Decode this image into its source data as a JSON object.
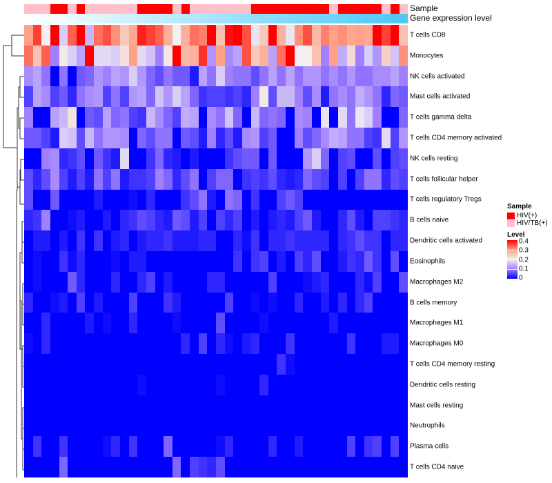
{
  "chart_data": {
    "type": "heatmap",
    "annotations": {
      "sample": {
        "label": "Sample",
        "values": [
          "HIV/TB(+)",
          "HIV/TB(+)",
          "HIV/TB(+)",
          "HIV(+)",
          "HIV(+)",
          "HIV/TB(+)",
          "HIV(+)",
          "HIV/TB(+)",
          "HIV/TB(+)",
          "HIV/TB(+)",
          "HIV/TB(+)",
          "HIV/TB(+)",
          "HIV/TB(+)",
          "HIV(+)",
          "HIV(+)",
          "HIV(+)",
          "HIV(+)",
          "HIV/TB(+)",
          "HIV(+)",
          "HIV/TB(+)",
          "HIV/TB(+)",
          "HIV/TB(+)",
          "HIV/TB(+)",
          "HIV/TB(+)",
          "HIV/TB(+)",
          "HIV/TB(+)",
          "HIV(+)",
          "HIV(+)",
          "HIV(+)",
          "HIV(+)",
          "HIV(+)",
          "HIV(+)",
          "HIV(+)",
          "HIV(+)",
          "HIV(+)",
          "HIV/TB(+)",
          "HIV(+)",
          "HIV(+)",
          "HIV(+)",
          "HIV(+)",
          "HIV(+)",
          "HIV/TB(+)",
          "HIV(+)",
          "HIV/TB(+)"
        ]
      },
      "expression": {
        "label": "Gene expression level",
        "trend": "increasing left to right",
        "color_low": "#ffffff",
        "color_high": "#4ec8f4"
      }
    },
    "rows": [
      "T cells CD8",
      "Monocytes",
      "NK cells activated",
      "Mast cells activated",
      "T cells gamma delta",
      "T cells CD4 memory activated",
      "NK cells resting",
      "T cells follicular helper",
      "T cells regulatory  Tregs",
      "B cells naive",
      "Dendritic cells activated",
      "Eosinophils",
      "Macrophages M2",
      "B cells memory",
      "Macrophages M1",
      "Macrophages M0",
      "T cells CD4 memory resting",
      "Dendritic cells resting",
      "Mast cells resting",
      "Neutrophils",
      "Plasma cells",
      "T cells CD4 naive"
    ],
    "values": [
      [
        0.3,
        0.36,
        0.2,
        0.4,
        0.17,
        0.34,
        0.4,
        0.15,
        0.33,
        0.35,
        0.31,
        0.25,
        0.29,
        0.38,
        0.36,
        0.34,
        0.28,
        0.2,
        0.28,
        0.33,
        0.32,
        0.4,
        0.26,
        0.39,
        0.4,
        0.35,
        0.19,
        0.25,
        0.4,
        0.28,
        0.19,
        0.31,
        0.35,
        0.27,
        0.32,
        0.3,
        0.31,
        0.29,
        0.3,
        0.29,
        0.4,
        0.36,
        0.4,
        0.26
      ],
      [
        0.33,
        0.26,
        0.34,
        0.1,
        0.21,
        0.17,
        0.13,
        0.4,
        0.18,
        0.18,
        0.17,
        0.22,
        0.3,
        0.18,
        0.16,
        0.1,
        0.21,
        0.4,
        0.27,
        0.28,
        0.37,
        0.12,
        0.3,
        0.11,
        0.13,
        0.35,
        0.25,
        0.28,
        0.13,
        0.33,
        0.4,
        0.2,
        0.2,
        0.26,
        0.1,
        0.3,
        0.14,
        0.23,
        0.1,
        0.17,
        0.12,
        0.24,
        0.16,
        0.31
      ],
      [
        0.11,
        0.13,
        0.09,
        0.0,
        0.09,
        0.0,
        0.07,
        0.08,
        0.12,
        0.1,
        0.13,
        0.12,
        0.17,
        0.12,
        0.08,
        0.06,
        0.09,
        0.07,
        0.07,
        0.02,
        0.13,
        0.09,
        0.17,
        0.1,
        0.09,
        0.09,
        0.06,
        0.09,
        0.13,
        0.09,
        0.13,
        0.09,
        0.12,
        0.12,
        0.09,
        0.11,
        0.09,
        0.12,
        0.09,
        0.09,
        0.11,
        0.11,
        0.13,
        0.1
      ],
      [
        0.05,
        0.13,
        0.11,
        0.05,
        0.07,
        0.03,
        0.09,
        0.11,
        0.12,
        0.05,
        0.09,
        0.05,
        0.12,
        0.13,
        0.08,
        0.16,
        0.12,
        0.17,
        0.13,
        0.08,
        0.04,
        0.05,
        0.05,
        0.04,
        0.05,
        0.03,
        0.1,
        0.21,
        0.06,
        0.15,
        0.15,
        0.1,
        0.06,
        0.11,
        0.02,
        0.09,
        0.11,
        0.09,
        0.14,
        0.12,
        0.09,
        0.03,
        0.08,
        0.07
      ],
      [
        0.1,
        0.0,
        0.0,
        0.13,
        0.15,
        0.22,
        0.0,
        0.07,
        0.06,
        0.13,
        0.08,
        0.09,
        0.05,
        0.04,
        0.15,
        0.11,
        0.08,
        0.05,
        0.14,
        0.13,
        0.0,
        0.11,
        0.09,
        0.16,
        0.08,
        0.0,
        0.15,
        0.08,
        0.09,
        0.08,
        0.0,
        0.11,
        0.1,
        0.0,
        0.19,
        0.0,
        0.18,
        0.09,
        0.19,
        0.17,
        0.1,
        0.0,
        0.0,
        0.08
      ],
      [
        0.07,
        0.07,
        0.05,
        0.02,
        0.17,
        0.16,
        0.06,
        0.15,
        0.09,
        0.12,
        0.12,
        0.11,
        0.0,
        0.08,
        0.06,
        0.09,
        0.09,
        0.0,
        0.07,
        0.06,
        0.02,
        0.1,
        0.03,
        0.06,
        0.02,
        0.11,
        0.12,
        0.05,
        0.07,
        0.0,
        0.0,
        0.1,
        0.06,
        0.08,
        0.11,
        0.14,
        0.13,
        0.09,
        0.09,
        0.05,
        0.04,
        0.18,
        0.05,
        0.12
      ],
      [
        0.0,
        0.0,
        0.1,
        0.11,
        0.03,
        0.04,
        0.06,
        0.0,
        0.07,
        0.04,
        0.02,
        0.18,
        0.0,
        0.0,
        0.04,
        0.08,
        0.03,
        0.02,
        0.0,
        0.02,
        0.0,
        0.0,
        0.0,
        0.04,
        0.06,
        0.07,
        0.07,
        0.0,
        0.07,
        0.0,
        0.0,
        0.0,
        0.12,
        0.17,
        0.08,
        0.0,
        0.05,
        0.06,
        0.0,
        0.0,
        0.06,
        0.0,
        0.05,
        0.06
      ],
      [
        0.06,
        0.03,
        0.06,
        0.11,
        0.05,
        0.02,
        0.05,
        0.02,
        0.09,
        0.05,
        0.09,
        0.02,
        0.04,
        0.04,
        0.05,
        0.1,
        0.08,
        0.03,
        0.06,
        0.09,
        0.0,
        0.05,
        0.08,
        0.08,
        0.0,
        0.04,
        0.05,
        0.04,
        0.06,
        0.03,
        0.02,
        0.03,
        0.08,
        0.06,
        0.05,
        0.0,
        0.05,
        0.0,
        0.05,
        0.09,
        0.09,
        0.03,
        0.06,
        0.05
      ],
      [
        0.06,
        0.0,
        0.0,
        0.07,
        0.0,
        0.0,
        0.0,
        0.0,
        0.02,
        0.0,
        0.0,
        0.0,
        0.01,
        0.0,
        0.03,
        0.0,
        0.0,
        0.0,
        0.04,
        0.06,
        0.09,
        0.02,
        0.0,
        0.09,
        0.08,
        0.0,
        0.04,
        0.0,
        0.0,
        0.05,
        0.07,
        0.05,
        0.0,
        0.0,
        0.0,
        0.0,
        0.0,
        0.0,
        0.0,
        0.0,
        0.0,
        0.0,
        0.0,
        0.0
      ],
      [
        0.03,
        0.04,
        0.1,
        0.0,
        0.0,
        0.01,
        0.02,
        0.0,
        0.0,
        0.02,
        0.0,
        0.03,
        0.04,
        0.06,
        0.05,
        0.03,
        0.02,
        0.07,
        0.06,
        0.02,
        0.05,
        0.0,
        0.05,
        0.03,
        0.05,
        0.0,
        0.02,
        0.0,
        0.02,
        0.03,
        0.02,
        0.05,
        0.07,
        0.02,
        0.0,
        0.0,
        0.03,
        0.06,
        0.02,
        0.0,
        0.05,
        0.05,
        0.04,
        0.03
      ],
      [
        0.0,
        0.02,
        0.02,
        0.0,
        0.02,
        0.0,
        0.04,
        0.0,
        0.04,
        0.0,
        0.02,
        0.03,
        0.0,
        0.02,
        0.03,
        0.03,
        0.04,
        0.02,
        0.02,
        0.02,
        0.03,
        0.03,
        0.0,
        0.0,
        0.03,
        0.01,
        0.04,
        0.0,
        0.03,
        0.03,
        0.04,
        0.03,
        0.03,
        0.03,
        0.03,
        0.0,
        0.03,
        0.04,
        0.06,
        0.04,
        0.04,
        0.0,
        0.03,
        0.03
      ],
      [
        0.0,
        0.01,
        0.0,
        0.0,
        0.04,
        0.01,
        0.03,
        0.0,
        0.0,
        0.0,
        0.01,
        0.0,
        0.02,
        0.02,
        0.0,
        0.0,
        0.0,
        0.0,
        0.0,
        0.0,
        0.0,
        0.0,
        0.0,
        0.0,
        0.04,
        0.0,
        0.04,
        0.05,
        0.0,
        0.02,
        0.0,
        0.05,
        0.03,
        0.06,
        0.0,
        0.0,
        0.02,
        0.04,
        0.03,
        0.07,
        0.04,
        0.0,
        0.06,
        0.0
      ],
      [
        0.0,
        0.01,
        0.0,
        0.0,
        0.0,
        0.07,
        0.03,
        0.0,
        0.0,
        0.0,
        0.03,
        0.0,
        0.0,
        0.03,
        0.05,
        0.0,
        0.02,
        0.0,
        0.0,
        0.0,
        0.0,
        0.03,
        0.03,
        0.0,
        0.0,
        0.0,
        0.0,
        0.0,
        0.05,
        0.0,
        0.0,
        0.0,
        0.01,
        0.02,
        0.03,
        0.0,
        0.0,
        0.0,
        0.03,
        0.01,
        0.05,
        0.0,
        0.0,
        0.06
      ],
      [
        0.03,
        0.0,
        0.0,
        0.01,
        0.02,
        0.0,
        0.05,
        0.0,
        0.02,
        0.0,
        0.0,
        0.0,
        0.05,
        0.0,
        0.0,
        0.0,
        0.04,
        0.02,
        0.0,
        0.0,
        0.0,
        0.0,
        0.0,
        0.05,
        0.0,
        0.0,
        0.01,
        0.0,
        0.01,
        0.0,
        0.0,
        0.03,
        0.0,
        0.0,
        0.02,
        0.0,
        0.03,
        0.0,
        0.03,
        0.05,
        0.0,
        0.0,
        0.0,
        0.0
      ],
      [
        0.0,
        0.0,
        0.03,
        0.0,
        0.0,
        0.0,
        0.0,
        0.02,
        0.0,
        0.01,
        0.0,
        0.0,
        0.03,
        0.0,
        0.0,
        0.0,
        0.0,
        0.01,
        0.0,
        0.0,
        0.0,
        0.0,
        0.06,
        0.0,
        0.0,
        0.0,
        0.0,
        0.01,
        0.0,
        0.0,
        0.0,
        0.0,
        0.0,
        0.0,
        0.0,
        0.02,
        0.0,
        0.0,
        0.0,
        0.0,
        0.0,
        0.0,
        0.0,
        0.0
      ],
      [
        0.01,
        0.0,
        0.03,
        0.0,
        0.0,
        0.0,
        0.0,
        0.0,
        0.0,
        0.0,
        0.0,
        0.0,
        0.0,
        0.0,
        0.0,
        0.0,
        0.0,
        0.0,
        0.03,
        0.0,
        0.05,
        0.0,
        0.03,
        0.01,
        0.0,
        0.02,
        0.03,
        0.0,
        0.0,
        0.0,
        0.04,
        0.0,
        0.0,
        0.0,
        0.0,
        0.0,
        0.0,
        0.04,
        0.0,
        0.0,
        0.0,
        0.02,
        0.02,
        0.0
      ],
      [
        0.0,
        0.0,
        0.0,
        0.0,
        0.0,
        0.0,
        0.0,
        0.0,
        0.0,
        0.0,
        0.0,
        0.0,
        0.0,
        0.0,
        0.0,
        0.0,
        0.0,
        0.0,
        0.0,
        0.0,
        0.0,
        0.0,
        0.0,
        0.0,
        0.0,
        0.0,
        0.0,
        0.0,
        0.0,
        0.04,
        0.01,
        0.0,
        0.0,
        0.0,
        0.0,
        0.0,
        0.0,
        0.0,
        0.0,
        0.0,
        0.0,
        0.0,
        0.0,
        0.0
      ],
      [
        0.0,
        0.0,
        0.0,
        0.0,
        0.0,
        0.0,
        0.0,
        0.0,
        0.0,
        0.0,
        0.0,
        0.0,
        0.0,
        0.01,
        0.0,
        0.0,
        0.0,
        0.0,
        0.0,
        0.0,
        0.0,
        0.0,
        0.01,
        0.0,
        0.0,
        0.0,
        0.0,
        0.03,
        0.0,
        0.0,
        0.0,
        0.0,
        0.0,
        0.0,
        0.0,
        0.0,
        0.0,
        0.0,
        0.0,
        0.0,
        0.0,
        0.0,
        0.0,
        0.0
      ],
      [
        0,
        0,
        0,
        0,
        0,
        0,
        0,
        0,
        0,
        0,
        0,
        0,
        0,
        0,
        0,
        0,
        0,
        0,
        0,
        0,
        0,
        0,
        0,
        0,
        0,
        0,
        0,
        0,
        0,
        0,
        0,
        0,
        0,
        0,
        0,
        0,
        0,
        0,
        0,
        0,
        0,
        0,
        0,
        0
      ],
      [
        0,
        0,
        0,
        0,
        0,
        0,
        0,
        0,
        0,
        0,
        0,
        0,
        0,
        0,
        0,
        0,
        0,
        0,
        0,
        0,
        0,
        0,
        0,
        0,
        0,
        0,
        0,
        0,
        0,
        0,
        0,
        0,
        0,
        0,
        0,
        0,
        0,
        0,
        0,
        0,
        0,
        0,
        0,
        0
      ],
      [
        0.0,
        0.04,
        0.0,
        0.0,
        0.04,
        0.0,
        0.0,
        0.0,
        0.0,
        0.01,
        0.03,
        0.0,
        0.04,
        0.0,
        0.0,
        0.0,
        0.08,
        0.0,
        0.0,
        0.0,
        0.0,
        0.0,
        0.01,
        0.03,
        0.0,
        0.0,
        0.0,
        0.0,
        0.03,
        0.0,
        0.0,
        0.02,
        0.0,
        0.0,
        0.0,
        0.0,
        0.0,
        0.05,
        0.0,
        0.04,
        0.05,
        0.0,
        0.05,
        0.0
      ],
      [
        0.0,
        0.0,
        0.0,
        0.0,
        0.08,
        0.0,
        0.0,
        0.0,
        0.0,
        0.0,
        0.0,
        0.0,
        0.0,
        0.0,
        0.0,
        0.0,
        0.0,
        0.08,
        0.0,
        0.05,
        0.04,
        0.03,
        0.06,
        0.0,
        0.0,
        0.0,
        0.0,
        0.0,
        0.0,
        0.0,
        0.0,
        0.0,
        0.0,
        0.0,
        0.0,
        0.0,
        0.0,
        0.0,
        0.0,
        0.0,
        0.0,
        0.0,
        0.0,
        0.0
      ]
    ],
    "color_scale": {
      "min": 0,
      "mid": 0.2,
      "max": 0.4,
      "low": "#0000ff",
      "midcolor": "#f2f0f0",
      "high": "#ff0000"
    },
    "legend": {
      "sample_title": "Sample",
      "sample_entries": [
        {
          "label": "HIV(+)",
          "color": "#ff0000"
        },
        {
          "label": "HIV/TB(+)",
          "color": "#ffc0cb"
        }
      ],
      "level_title": "Level",
      "level_ticks": [
        "0.4",
        "0.3",
        "0.2",
        "0.1",
        "0"
      ]
    },
    "row_dendrogram": true,
    "legend_placement": "right"
  }
}
